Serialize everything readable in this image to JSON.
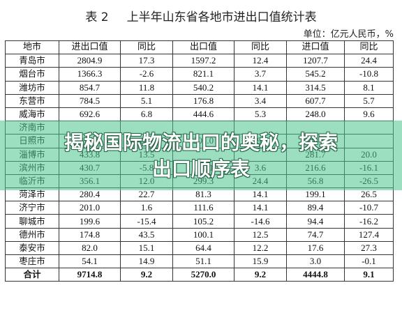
{
  "title": {
    "label": "表 2",
    "text": "上半年山东省各地市进出口值统计表"
  },
  "unit": "单位：亿元人民币，%",
  "table": {
    "headers": [
      "地市",
      "进出口值",
      "同比",
      "出口值",
      "同比",
      "进口值",
      "同比"
    ],
    "rows": [
      [
        "青岛市",
        "2804.9",
        "17.3",
        "1597.2",
        "12.4",
        "1207.7",
        "24.4"
      ],
      [
        "烟台市",
        "1366.3",
        "-2.6",
        "821.1",
        "3.7",
        "545.2",
        "-10.8"
      ],
      [
        "潍坊市",
        "854.7",
        "11.8",
        "540.2",
        "14.1",
        "314.5",
        "8.1"
      ],
      [
        "东营市",
        "784.5",
        "5.1",
        "176.8",
        "3.4",
        "607.7",
        "5.7"
      ],
      [
        "威海市",
        "692.6",
        "6.8",
        "444.6",
        "5.3",
        "248.0",
        "9.6"
      ],
      [
        "济南市",
        "",
        "",
        "",
        "",
        "",
        ""
      ],
      [
        "日照市",
        "493.2",
        "14.0",
        "201.0",
        "19.2",
        "",
        ""
      ],
      [
        "淄博市",
        "433.8",
        "13.5",
        "",
        "",
        "281.7",
        "20.0"
      ],
      [
        "滨州市",
        "430.7",
        "-5.8",
        "214.1",
        "3.6",
        "216.6",
        "-16.1"
      ],
      [
        "临沂市",
        "356.1",
        "12.0",
        "299.3",
        "24.4",
        "56.8",
        "-26.5"
      ],
      [
        "菏泽市",
        "280.4",
        "22.7",
        "81.3",
        "14.1",
        "199.1",
        "26.5"
      ],
      [
        "济宁市",
        "201.0",
        "1.6",
        "111.6",
        "14.1",
        "89.4",
        "-10.7"
      ],
      [
        "聊城市",
        "199.6",
        "-15.4",
        "105.2",
        "-14.6",
        "94.4",
        "-16.2"
      ],
      [
        "德州市",
        "174.8",
        "43.5",
        "100.1",
        "12.5",
        "74.7",
        "127.4"
      ],
      [
        "泰安市",
        "82.0",
        "15.1",
        "64.4",
        "12.2",
        "17.6",
        "27.3"
      ],
      [
        "枣庄市",
        "54.1",
        "14.9",
        "51.1",
        "15.9",
        "3.0",
        "-0.1"
      ]
    ],
    "total": [
      "合计",
      "9714.8",
      "9.2",
      "5270.0",
      "9.2",
      "4444.8",
      "9.1"
    ]
  },
  "overlay": {
    "line1": "揭秘国际物流出口的奥秘，探索",
    "line2": "出口顺序表",
    "color": "#48c48c"
  }
}
